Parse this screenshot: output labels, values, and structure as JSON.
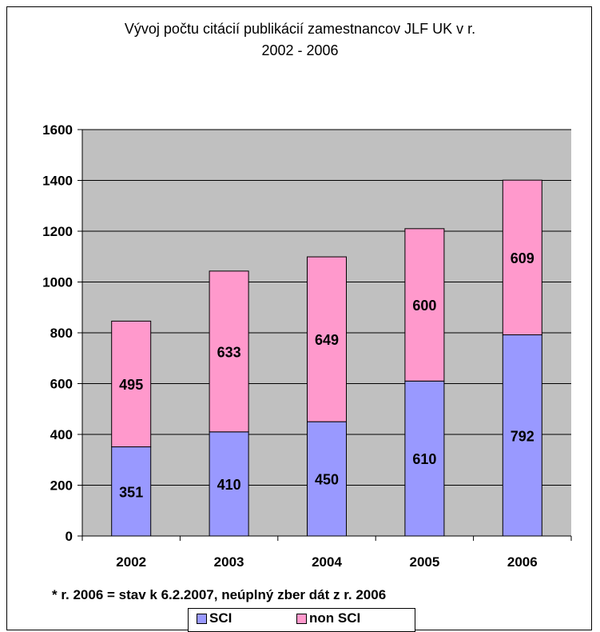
{
  "chart_data": {
    "type": "bar",
    "stacked": true,
    "title": "Vývoj počtu citácií publikácií zamestnancov JLF UK v r. 2002 - 2006",
    "title_lines": [
      "Vývoj počtu citácií publikácií zamestnancov JLF UK v r.",
      "2002 - 2006"
    ],
    "categories": [
      "2002",
      "2003",
      "2004",
      "2005",
      "2006"
    ],
    "series": [
      {
        "name": "SCI",
        "values": [
          351,
          410,
          450,
          610,
          792
        ],
        "color": "#9999ff"
      },
      {
        "name": "non SCI",
        "values": [
          495,
          633,
          649,
          600,
          609
        ],
        "color": "#ff99cc"
      }
    ],
    "ylim": [
      0,
      1600
    ],
    "yticks": [
      0,
      200,
      400,
      600,
      800,
      1000,
      1200,
      1400,
      1600
    ],
    "grid": true,
    "plot_background": "#c0c0c0",
    "legend_position": "bottom",
    "footnote": "* r. 2006 = stav k 6.2.2007, neúplný zber dát z r. 2006"
  }
}
